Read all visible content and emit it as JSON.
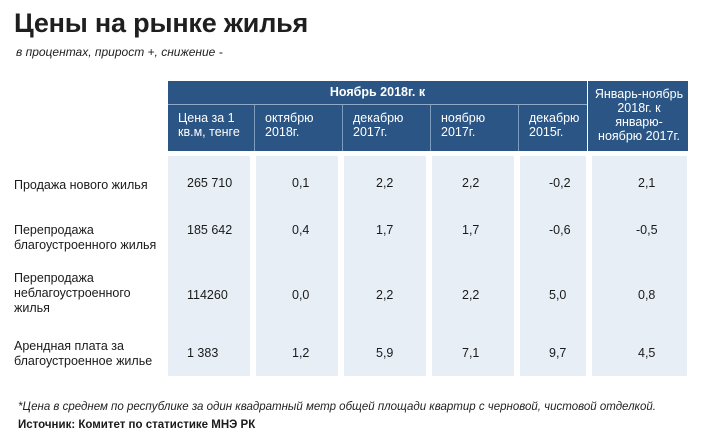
{
  "title": "Цены на рынке жилья",
  "subtitle": "в процентах, прирост +, снижение -",
  "table": {
    "group_header": "Ноябрь 2018г. к",
    "col0_header": "Цена за 1 кв.м, тенге",
    "columns": [
      "октябрю 2018г.",
      "декабрю 2017г.",
      "ноябрю 2017г.",
      "декабрю 2015г."
    ],
    "last_header": "Январь-ноябрь 2018г. к январю-ноябрю 2017г.",
    "rows": [
      {
        "label": "Продажа нового жилья",
        "values": [
          "265 710",
          "0,1",
          "2,2",
          "2,2",
          "-0,2",
          "2,1"
        ]
      },
      {
        "label": "Перепродажа благоустроенного жилья",
        "values": [
          "185 642",
          "0,4",
          "1,7",
          "1,7",
          "-0,6",
          "-0,5"
        ]
      },
      {
        "label": "Перепродажа неблагоустроенного жилья",
        "values": [
          "114260",
          "0,0",
          "2,2",
          "2,2",
          "5,0",
          "0,8"
        ]
      },
      {
        "label": "Арендная плата за благоустроенное жилье",
        "values": [
          "1 383",
          "1,2",
          "5,9",
          "7,1",
          "9,7",
          "4,5"
        ]
      }
    ]
  },
  "footnote": "*Цена в среднем по республике за один квадратный метр общей площади квартир с черновой, чистовой отделкой.",
  "source": "Источник: Комитет по статистике МНЭ РК",
  "colors": {
    "header": "#2b5584",
    "column_fill": "#e8eef6"
  }
}
